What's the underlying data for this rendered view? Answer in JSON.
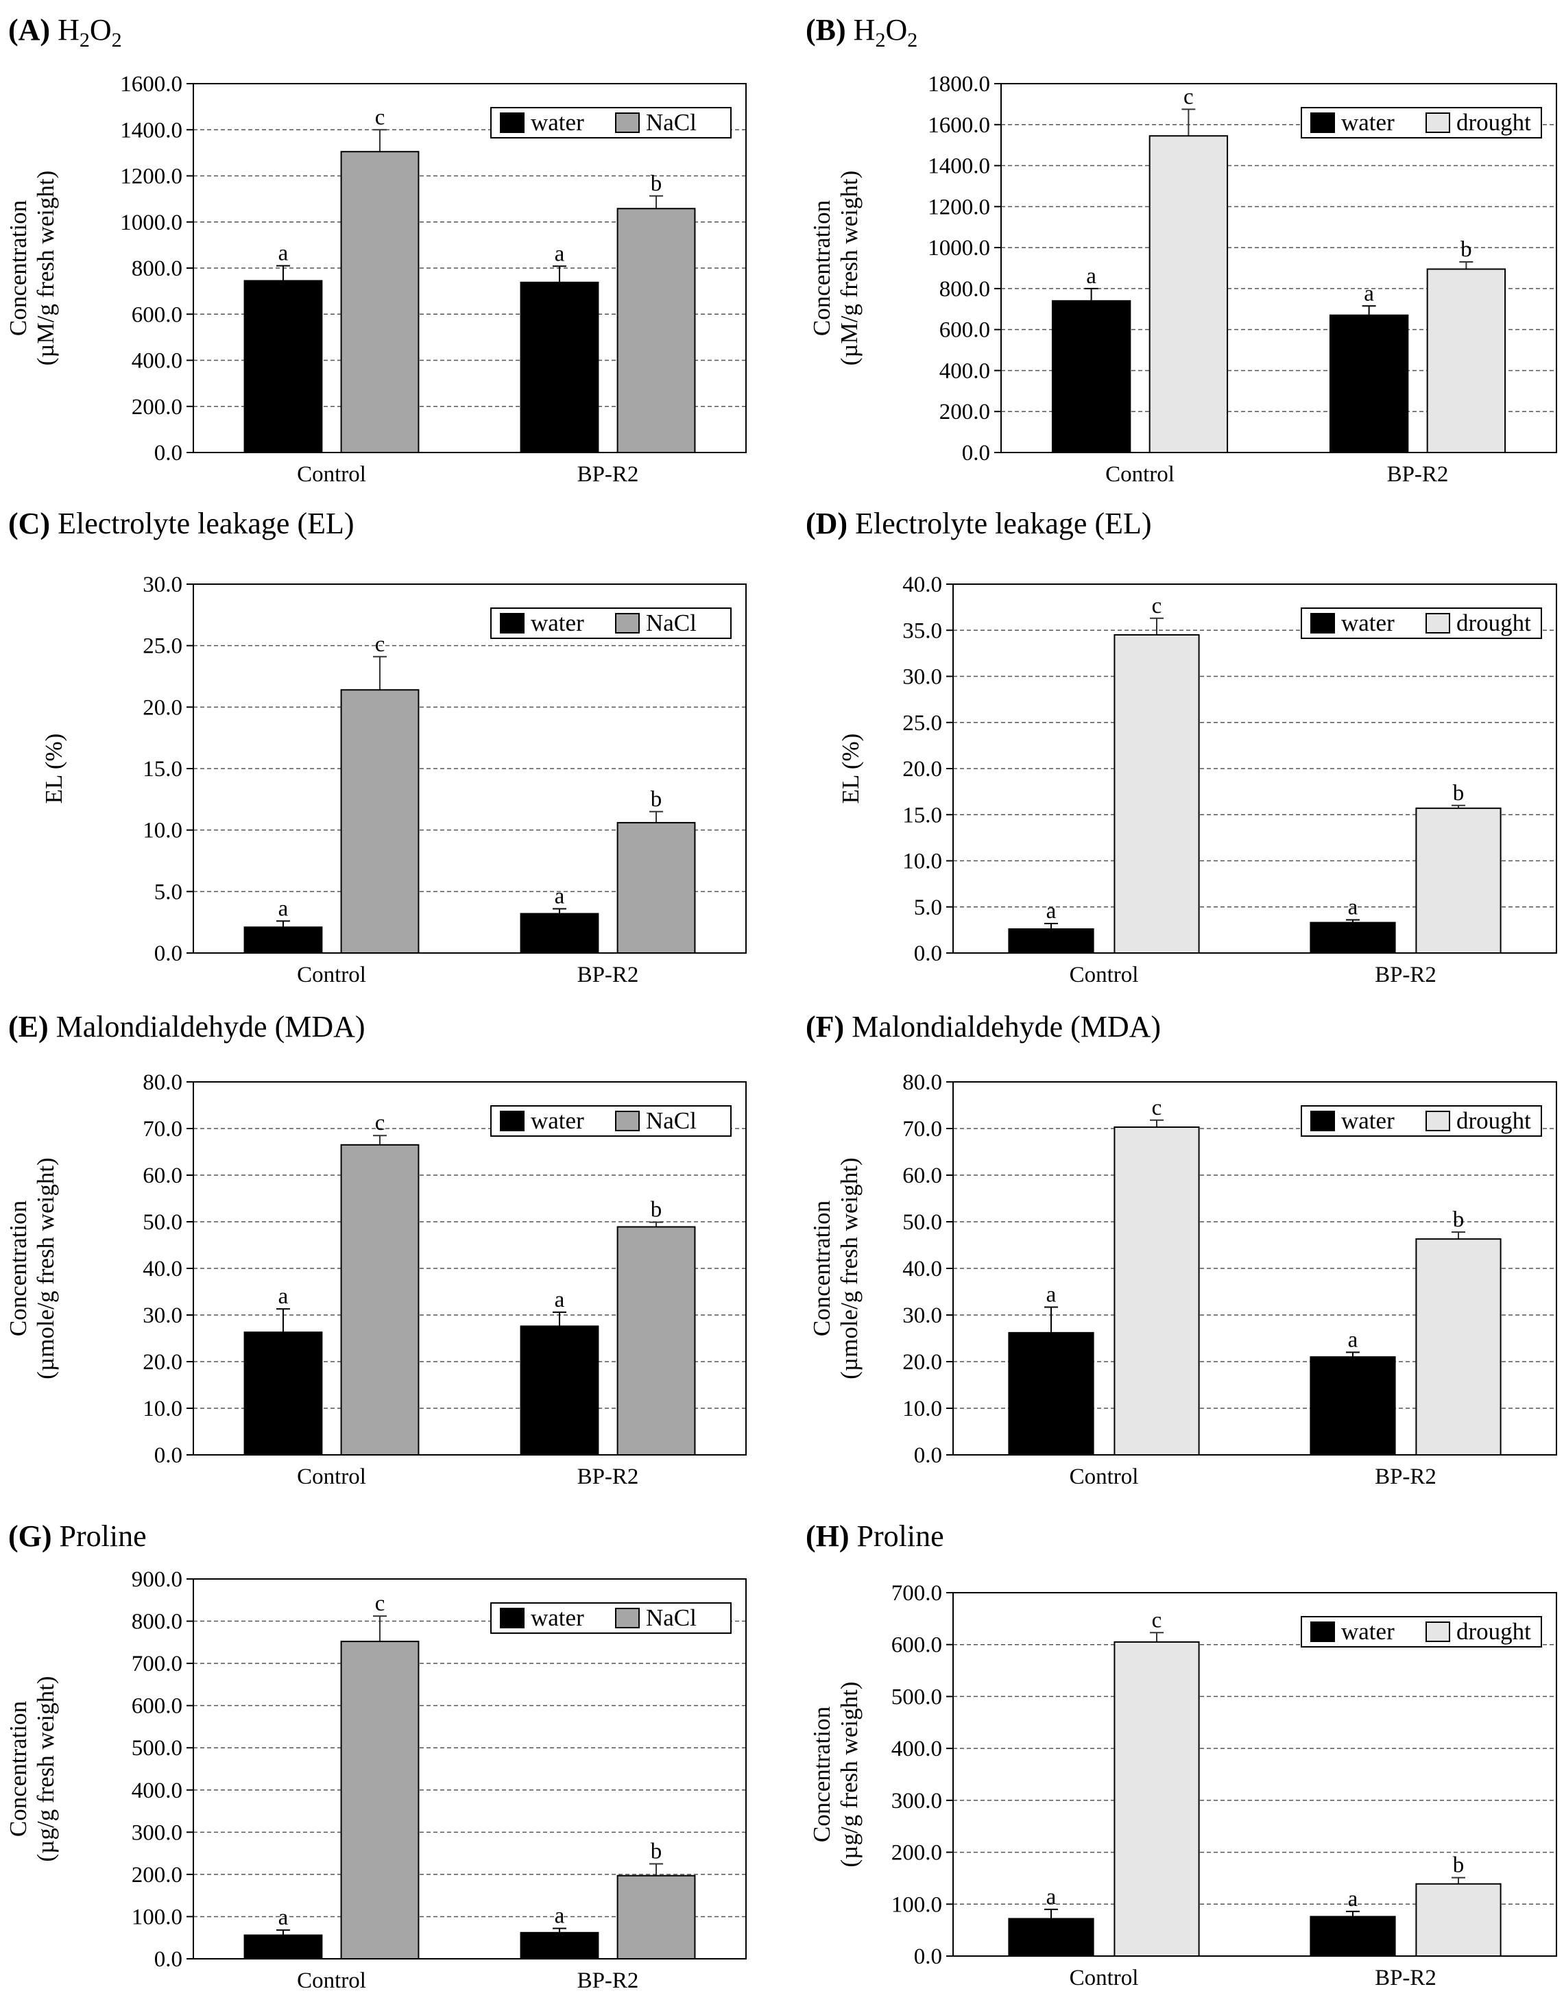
{
  "legend_water": "water",
  "colors": {
    "water": "#000000",
    "NaCl": "#a6a6a6",
    "drought": "#e6e6e6",
    "grid": "#555555"
  },
  "chart_data": [
    {
      "letter": "(A)",
      "title_html": "H<tspan dy='10' font-size='30'>2</tspan><tspan dy='-10'>O</tspan><tspan dy='10' font-size='30'>2</tspan>",
      "title": "H2O2",
      "type": "bar",
      "categories": [
        "Control",
        "BP-R2"
      ],
      "ylabel_lines": [
        "Concentration",
        "(µM/g fresh weight)"
      ],
      "ylim": [
        0,
        1600
      ],
      "tick_step": 200,
      "series": [
        {
          "name": "water",
          "values": [
            745,
            738
          ],
          "errors": [
            65,
            70
          ],
          "labels": [
            "a",
            "a"
          ]
        },
        {
          "name": "NaCl",
          "values": [
            1305,
            1058
          ],
          "errors": [
            95,
            55
          ],
          "labels": [
            "c",
            "b"
          ]
        }
      ]
    },
    {
      "letter": "(B)",
      "title": "H2O2",
      "type": "bar",
      "categories": [
        "Control",
        "BP-R2"
      ],
      "ylabel_lines": [
        "Concentration",
        "(µM/g fresh weight)"
      ],
      "ylim": [
        0,
        1800
      ],
      "tick_step": 200,
      "series": [
        {
          "name": "water",
          "values": [
            740,
            670
          ],
          "errors": [
            60,
            45
          ],
          "labels": [
            "a",
            "a"
          ]
        },
        {
          "name": "drought",
          "values": [
            1545,
            895
          ],
          "errors": [
            130,
            35
          ],
          "labels": [
            "c",
            "b"
          ]
        }
      ]
    },
    {
      "letter": "(C)",
      "title": "Electrolyte leakage (EL)",
      "type": "bar",
      "categories": [
        "Control",
        "BP-R2"
      ],
      "ylabel_lines": [
        "EL (%)"
      ],
      "ylim": [
        0,
        30
      ],
      "tick_step": 5,
      "series": [
        {
          "name": "water",
          "values": [
            2.1,
            3.2
          ],
          "errors": [
            0.5,
            0.4
          ],
          "labels": [
            "a",
            "a"
          ]
        },
        {
          "name": "NaCl",
          "values": [
            21.4,
            10.6
          ],
          "errors": [
            2.7,
            0.9
          ],
          "labels": [
            "c",
            "b"
          ]
        }
      ]
    },
    {
      "letter": "(D)",
      "title": "Electrolyte leakage (EL)",
      "type": "bar",
      "categories": [
        "Control",
        "BP-R2"
      ],
      "ylabel_lines": [
        "EL (%)"
      ],
      "ylim": [
        0,
        40
      ],
      "tick_step": 5,
      "series": [
        {
          "name": "water",
          "values": [
            2.6,
            3.3
          ],
          "errors": [
            0.6,
            0.3
          ],
          "labels": [
            "a",
            "a"
          ]
        },
        {
          "name": "drought",
          "values": [
            34.5,
            15.7
          ],
          "errors": [
            1.8,
            0.3
          ],
          "labels": [
            "c",
            "b"
          ]
        }
      ]
    },
    {
      "letter": "(E)",
      "title": "Malondialdehyde (MDA)",
      "type": "bar",
      "categories": [
        "Control",
        "BP-R2"
      ],
      "ylabel_lines": [
        "Concentration",
        "(µmole/g fresh weight)"
      ],
      "ylim": [
        0,
        80
      ],
      "tick_step": 10,
      "series": [
        {
          "name": "water",
          "values": [
            26.3,
            27.6
          ],
          "errors": [
            5,
            3
          ],
          "labels": [
            "a",
            "a"
          ]
        },
        {
          "name": "NaCl",
          "values": [
            66.5,
            48.9
          ],
          "errors": [
            2,
            1
          ],
          "labels": [
            "c",
            "b"
          ]
        }
      ]
    },
    {
      "letter": "(F)",
      "title": "Malondialdehyde (MDA)",
      "type": "bar",
      "categories": [
        "Control",
        "BP-R2"
      ],
      "ylabel_lines": [
        "Concentration",
        "(µmole/g fresh weight)"
      ],
      "ylim": [
        0,
        80
      ],
      "tick_step": 10,
      "series": [
        {
          "name": "water",
          "values": [
            26.2,
            21.0
          ],
          "errors": [
            5.5,
            1
          ],
          "labels": [
            "a",
            "a"
          ]
        },
        {
          "name": "drought",
          "values": [
            70.3,
            46.3
          ],
          "errors": [
            1.5,
            1.5
          ],
          "labels": [
            "c",
            "b"
          ]
        }
      ]
    },
    {
      "letter": "(G)",
      "title": "Proline",
      "type": "bar",
      "categories": [
        "Control",
        "BP-R2"
      ],
      "ylabel_lines": [
        "Concentration",
        "(µg/g fresh weight)"
      ],
      "ylim": [
        0,
        900
      ],
      "tick_step": 100,
      "series": [
        {
          "name": "water",
          "values": [
            56,
            62
          ],
          "errors": [
            12,
            10
          ],
          "labels": [
            "a",
            "a"
          ]
        },
        {
          "name": "NaCl",
          "values": [
            752,
            197
          ],
          "errors": [
            60,
            28
          ],
          "labels": [
            "c",
            "b"
          ]
        }
      ]
    },
    {
      "letter": "(H)",
      "title": "Proline",
      "type": "bar",
      "categories": [
        "Control",
        "BP-R2"
      ],
      "ylabel_lines": [
        "Concentration",
        "(µg/g fresh weight)"
      ],
      "ylim": [
        0,
        700
      ],
      "tick_step": 100,
      "series": [
        {
          "name": "water",
          "values": [
            72,
            76
          ],
          "errors": [
            18,
            10
          ],
          "labels": [
            "a",
            "a"
          ]
        },
        {
          "name": "drought",
          "values": [
            605,
            139
          ],
          "errors": [
            18,
            12
          ],
          "labels": [
            "c",
            "b"
          ]
        }
      ]
    }
  ]
}
